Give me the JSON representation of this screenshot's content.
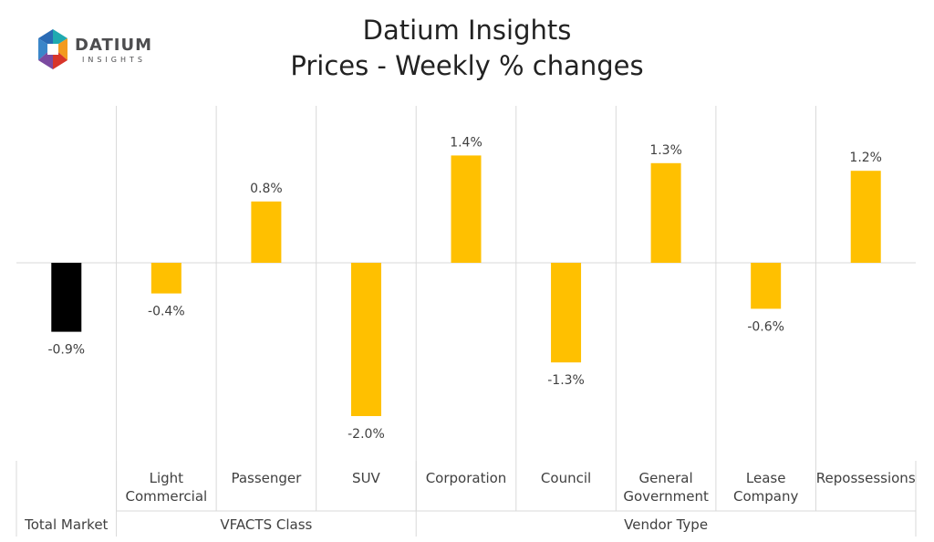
{
  "logo": {
    "name": "DATIUM",
    "tagline": "INSIGHTS",
    "colors": {
      "blue": "#2a6bb5",
      "teal": "#1faab0",
      "orange": "#f39a1f",
      "red": "#d8352a",
      "gray": "#4d4d4f"
    }
  },
  "chart_data": {
    "type": "bar",
    "title": "Datium Insights",
    "subtitle": "Prices - Weekly % changes",
    "categories": [
      [
        "Total Market"
      ],
      [
        "Light",
        "Commercial"
      ],
      [
        "Passenger"
      ],
      [
        "SUV"
      ],
      [
        "Corporation"
      ],
      [
        "Council"
      ],
      [
        "General",
        "Government"
      ],
      [
        "Lease",
        "Company"
      ],
      [
        "Repossessions"
      ]
    ],
    "groups": [
      {
        "label": "",
        "span": [
          1,
          1
        ]
      },
      {
        "label": "VFACTS Class",
        "span": [
          2,
          4
        ]
      },
      {
        "label": "Vendor Type",
        "span": [
          5,
          9
        ]
      }
    ],
    "values": [
      -0.9,
      -0.4,
      0.8,
      -2.0,
      1.4,
      -1.3,
      1.3,
      -0.6,
      1.2
    ],
    "data_labels": [
      "-0.9%",
      "-0.4%",
      "0.8%",
      "-2.0%",
      "1.4%",
      "-1.3%",
      "1.3%",
      "-0.6%",
      "1.2%"
    ],
    "bar_colors": [
      "#000000",
      "#ffc000",
      "#ffc000",
      "#ffc000",
      "#ffc000",
      "#ffc000",
      "#ffc000",
      "#ffc000",
      "#ffc000"
    ],
    "ylim": [
      -2.6,
      2.1
    ],
    "gridlines": "vertical separators",
    "legend": "none"
  }
}
